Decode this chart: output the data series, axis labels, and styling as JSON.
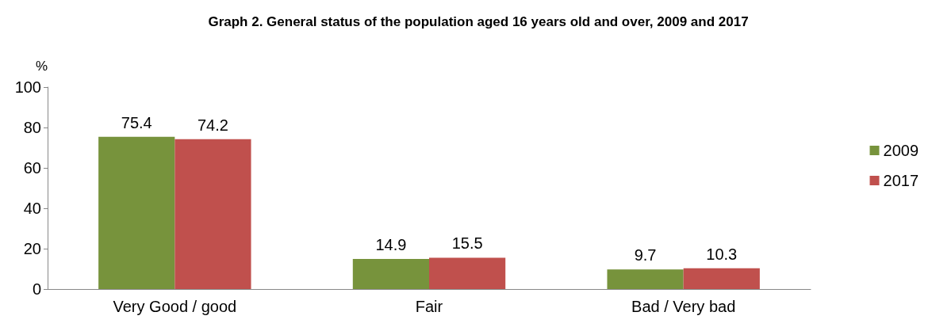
{
  "chart_data": {
    "type": "bar",
    "title": "Graph 2. General status of the population aged 16 years old and over, 2009 and 2017",
    "ylabel": "%",
    "categories": [
      "Very Good / good",
      "Fair",
      "Bad / Very bad"
    ],
    "series": [
      {
        "name": "2009",
        "color": "#77933c",
        "values": [
          75.4,
          14.9,
          9.7
        ]
      },
      {
        "name": "2017",
        "color": "#c0504d",
        "values": [
          74.2,
          15.5,
          10.3
        ]
      }
    ],
    "ylim": [
      0,
      100
    ],
    "yticks": [
      0,
      20,
      40,
      60,
      80,
      100
    ],
    "grid": false,
    "legend": "right",
    "data_labels": true
  }
}
